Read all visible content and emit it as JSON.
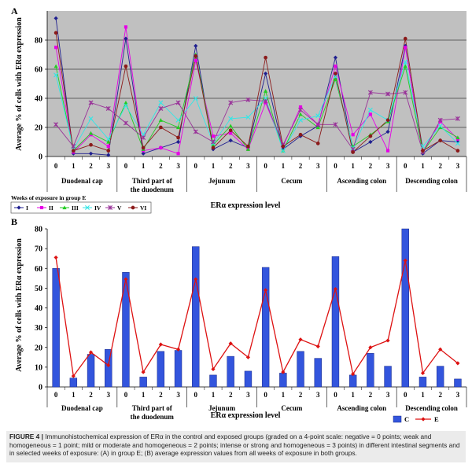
{
  "chart_data": [
    {
      "type": "line",
      "panel_label": "A",
      "ylabel": "Average % of cells with ERα expression",
      "xlabel": "ERα expression level",
      "ylim": [
        0,
        100
      ],
      "yticks": [
        0,
        20,
        40,
        60,
        80
      ],
      "groups": [
        "Duodenal cap",
        "Third part of the duodenum",
        "Jejunum",
        "Cecum",
        "Ascending colon",
        "Descending colon"
      ],
      "levels": [
        "0",
        "1",
        "2",
        "3"
      ],
      "legend_title": "Weeks of exposure in group E",
      "legend_position": "bottom-left",
      "grid": true,
      "plot_background": "#c0c0c0",
      "series": [
        {
          "name": "I",
          "color": "#1f1f8f",
          "marker": "diamond",
          "values": [
            95,
            2,
            2,
            1,
            81,
            2,
            6,
            10,
            76,
            5,
            11,
            6,
            57,
            5,
            14,
            21,
            68,
            3,
            10,
            17,
            76,
            2,
            11,
            10
          ]
        },
        {
          "name": "II",
          "color": "#e600e6",
          "marker": "square",
          "values": [
            75,
            3,
            15,
            7,
            89,
            4,
            6,
            2,
            66,
            14,
            16,
            5,
            37,
            7,
            34,
            22,
            62,
            15,
            29,
            4,
            75,
            3,
            24,
            12
          ]
        },
        {
          "name": "III",
          "color": "#22cc22",
          "marker": "triangle",
          "values": [
            62,
            4,
            16,
            10,
            37,
            5,
            25,
            20,
            70,
            8,
            21,
            5,
            45,
            4,
            29,
            20,
            53,
            7,
            15,
            24,
            62,
            3,
            20,
            13
          ]
        },
        {
          "name": "IV",
          "color": "#33e6e6",
          "marker": "x",
          "values": [
            56,
            5,
            26,
            12,
            35,
            15,
            37,
            25,
            40,
            9,
            26,
            27,
            40,
            4,
            25,
            28,
            55,
            6,
            32,
            25,
            65,
            7,
            21,
            9
          ]
        },
        {
          "name": "V",
          "color": "#993399",
          "marker": "asterisk",
          "values": [
            22,
            7,
            37,
            33,
            23,
            13,
            33,
            37,
            17,
            10,
            37,
            39,
            38,
            8,
            32,
            22,
            22,
            5,
            44,
            43,
            44,
            3,
            25,
            26
          ]
        },
        {
          "name": "VI",
          "color": "#8b1a1a",
          "marker": "circle",
          "values": [
            85,
            4,
            8,
            4,
            62,
            6,
            20,
            13,
            69,
            6,
            18,
            7,
            68,
            7,
            15,
            9,
            57,
            3,
            14,
            25,
            81,
            4,
            11,
            4
          ]
        }
      ]
    },
    {
      "type": "bar",
      "panel_label": "B",
      "ylabel": "Average % of cells with ERα expression",
      "xlabel": "ERα expression level",
      "ylim": [
        0,
        80
      ],
      "yticks": [
        0,
        10,
        20,
        30,
        40,
        50,
        60,
        70,
        80
      ],
      "groups": [
        "Duodenal cap",
        "Third part of the duodenum",
        "Jejunum",
        "Cecum",
        "Ascending colon",
        "Descending colon"
      ],
      "levels": [
        "0",
        "1",
        "2",
        "3"
      ],
      "legend_position": "bottom-right",
      "grid": false,
      "series": [
        {
          "name": "C",
          "type": "bar",
          "color": "#3355dd",
          "values": [
            60,
            4.5,
            16.5,
            19,
            58,
            5,
            18,
            18.5,
            71,
            6,
            15.5,
            8,
            60.5,
            7,
            18,
            14.5,
            66,
            6,
            17,
            10.5,
            80,
            5,
            10.5,
            4
          ]
        },
        {
          "name": "E",
          "type": "line",
          "color": "#dd1111",
          "marker": "diamond",
          "values": [
            65.5,
            5.5,
            17.5,
            11,
            54.5,
            7.5,
            21.5,
            19,
            54.5,
            9,
            22,
            15,
            49,
            7.5,
            24,
            20.5,
            49.5,
            6.5,
            20,
            23.5,
            64,
            7,
            19,
            12
          ]
        }
      ]
    }
  ],
  "caption": {
    "label": "FIGURE 4 |",
    "text": " Immunohistochemical expression of ERα in the control and exposed groups (graded on a 4-point scale: negative = 0 points; weak and homogeneous = 1 point; mild or moderate and homogeneous = 2 points; intense or strong and homogeneous = 3 points) in different intestinal segments and in selected weeks of exposure: (A) in group E; (B) average expression values from all weeks of exposure in both groups."
  }
}
